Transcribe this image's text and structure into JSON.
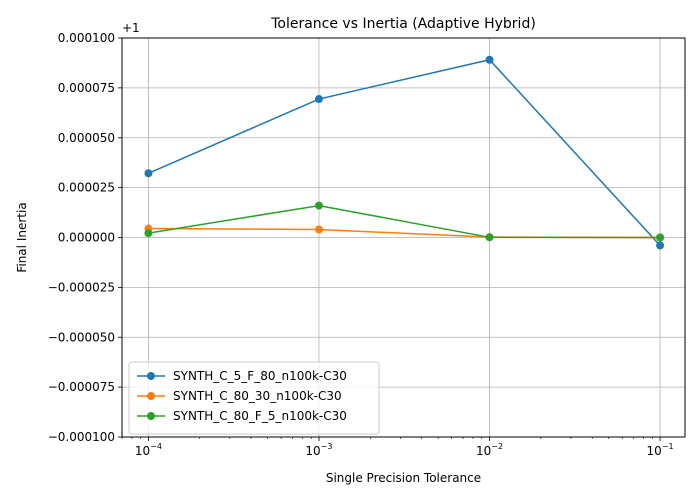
{
  "chart_data": {
    "type": "line",
    "title": "Tolerance vs Inertia (Adaptive Hybrid)",
    "xlabel": "Single Precision Tolerance",
    "ylabel": "Final Inertia",
    "offset_label": "+1",
    "x_scale": "log",
    "xlim": [
      7e-05,
      0.14
    ],
    "ylim": [
      -0.0001,
      0.0001
    ],
    "x": [
      0.0001,
      0.001,
      0.01,
      0.1
    ],
    "x_ticks": [
      {
        "value": 0.0001,
        "base": "10",
        "exp": "−4"
      },
      {
        "value": 0.001,
        "base": "10",
        "exp": "−3"
      },
      {
        "value": 0.01,
        "base": "10",
        "exp": "−2"
      },
      {
        "value": 0.1,
        "base": "10",
        "exp": "−1"
      }
    ],
    "y_ticks": [
      {
        "value": 0.0001,
        "label": "0.000100"
      },
      {
        "value": 7.5e-05,
        "label": "0.000075"
      },
      {
        "value": 5e-05,
        "label": "0.000050"
      },
      {
        "value": 2.5e-05,
        "label": "0.000025"
      },
      {
        "value": 0,
        "label": "0.000000"
      },
      {
        "value": -2.5e-05,
        "label": "−0.000025"
      },
      {
        "value": -5e-05,
        "label": "−0.000050"
      },
      {
        "value": -7.5e-05,
        "label": "−0.000075"
      },
      {
        "value": -0.0001,
        "label": "−0.000100"
      }
    ],
    "grid": true,
    "legend_position": "lower-left",
    "series": [
      {
        "name": "SYNTH_C_5_F_80_n100k-C30",
        "color": "#1f77b4",
        "values": [
          3.22e-05,
          6.94e-05,
          8.91e-05,
          -4e-06
        ]
      },
      {
        "name": "SYNTH_C_80_30_n100k-C30",
        "color": "#ff7f0e",
        "values": [
          4.5e-06,
          4e-06,
          2e-07,
          0.0
        ]
      },
      {
        "name": "SYNTH_C_80_F_5_n100k-C30",
        "color": "#2ca02c",
        "values": [
          2.2e-06,
          1.6e-05,
          1e-07,
          0.0
        ]
      }
    ]
  }
}
